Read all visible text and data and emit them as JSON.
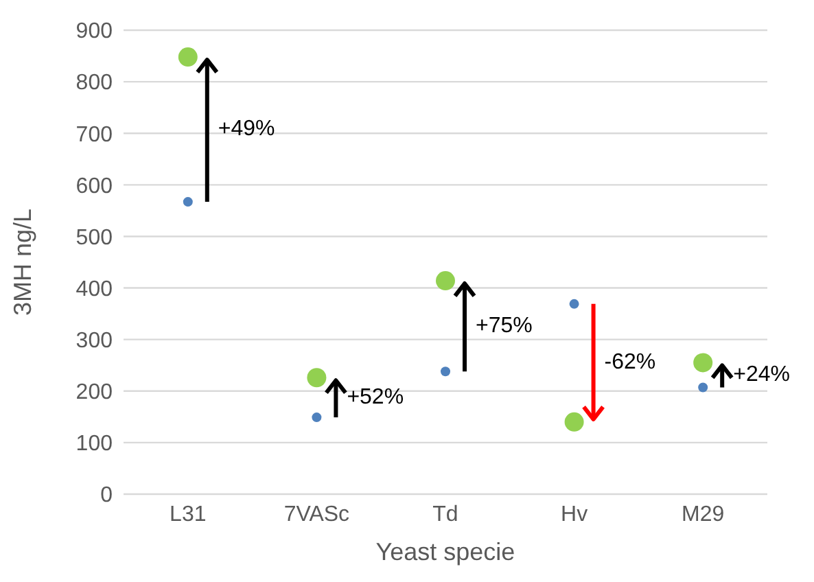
{
  "chart_data": {
    "type": "scatter",
    "xlabel": "Yeast specie",
    "ylabel": "3MH ng/L",
    "categories": [
      "L31",
      "7VASc",
      "Td",
      "Hv",
      "M29"
    ],
    "series": [
      {
        "color": "#4f81bd",
        "values": [
          567,
          149,
          238,
          369,
          207
        ]
      },
      {
        "color": "#92d050",
        "values": [
          848,
          226,
          414,
          140,
          255
        ]
      }
    ],
    "ylim": [
      0,
      900
    ],
    "yticks": [
      0,
      100,
      200,
      300,
      400,
      500,
      600,
      700,
      800,
      900
    ],
    "grid": "y",
    "legend": false,
    "marker": "circle",
    "annotations": [
      "+49%",
      "+52%",
      "+75%",
      "-62%",
      "+24%"
    ]
  }
}
